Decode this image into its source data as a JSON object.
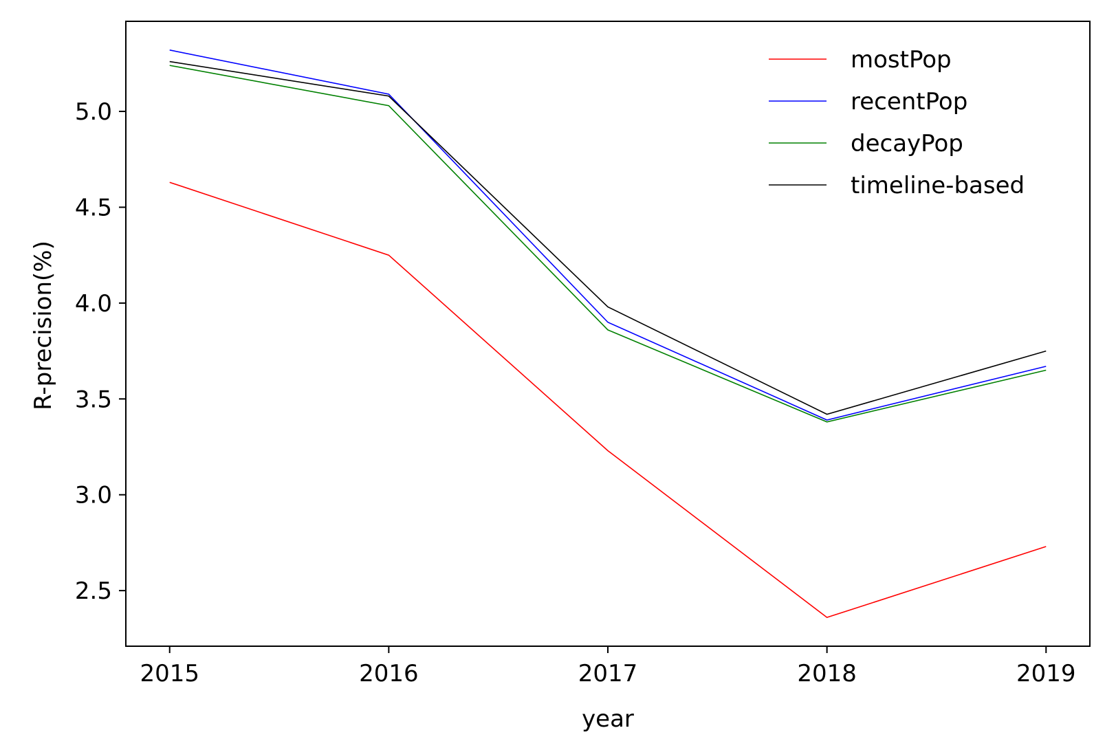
{
  "chart_data": {
    "type": "line",
    "title": "",
    "xlabel": "year",
    "ylabel": "R-precision(%)",
    "x": [
      2015,
      2016,
      2017,
      2018,
      2019
    ],
    "x_tick_labels": [
      "2015",
      "2016",
      "2017",
      "2018",
      "2019"
    ],
    "y_ticks": [
      2.5,
      3.0,
      3.5,
      4.0,
      4.5,
      5.0
    ],
    "y_tick_labels": [
      "2.5",
      "3.0",
      "3.5",
      "4.0",
      "4.5",
      "5.0"
    ],
    "xlim": [
      2014.8,
      2019.2
    ],
    "ylim": [
      2.21,
      5.47
    ],
    "grid": false,
    "legend_position": "top-right",
    "series": [
      {
        "name": "mostPop",
        "color": "#ff0000",
        "values": [
          4.63,
          4.25,
          3.23,
          2.36,
          2.73
        ]
      },
      {
        "name": "recentPop",
        "color": "#0000ff",
        "values": [
          5.32,
          5.09,
          3.9,
          3.39,
          3.67
        ]
      },
      {
        "name": "decayPop",
        "color": "#008000",
        "values": [
          5.24,
          5.03,
          3.86,
          3.38,
          3.65
        ]
      },
      {
        "name": "timeline-based",
        "color": "#000000",
        "values": [
          5.26,
          5.08,
          3.98,
          3.42,
          3.75
        ]
      }
    ]
  }
}
